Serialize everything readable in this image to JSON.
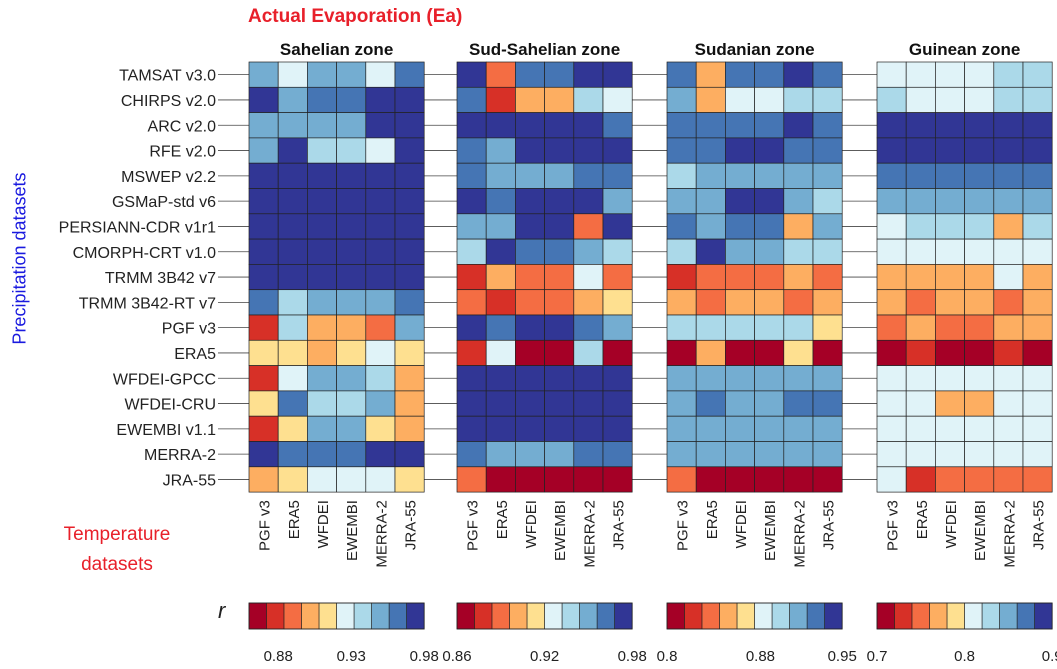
{
  "figure": {
    "title": "Actual Evaporation (Ea)",
    "y_axis_label": "Precipitation datasets",
    "temperature_label_line1": "Temperature",
    "temperature_label_line2": "datasets",
    "colorbar_symbol": "r"
  },
  "chart_data": [
    {
      "type": "heatmap",
      "title": "Sahelian zone",
      "rows": [
        "TAMSAT v3.0",
        "CHIRPS v2.0",
        "ARC v2.0",
        "RFE v2.0",
        "MSWEP v2.2",
        "GSMaP-std v6",
        "PERSIANN-CDR v1r1",
        "CMORPH-CRT v1.0",
        "TRMM 3B42 v7",
        "TRMM 3B42-RT v7",
        "PGF v3",
        "ERA5",
        "WFDEI-GPCC",
        "WFDEI-CRU",
        "EWEMBI v1.1",
        "MERRA-2",
        "JRA-55"
      ],
      "columns": [
        "PGF v3",
        "ERA5",
        "WFDEI",
        "EWEMBI",
        "MERRA-2",
        "JRA-55"
      ],
      "values": [
        [
          0.945,
          0.925,
          0.95,
          0.95,
          0.925,
          0.96
        ],
        [
          0.98,
          0.95,
          0.96,
          0.96,
          0.97,
          0.97
        ],
        [
          0.95,
          0.95,
          0.95,
          0.95,
          0.98,
          0.97
        ],
        [
          0.95,
          0.98,
          0.94,
          0.94,
          0.925,
          0.98
        ],
        [
          0.97,
          0.97,
          0.97,
          0.97,
          0.97,
          0.97
        ],
        [
          0.98,
          0.98,
          0.97,
          0.97,
          0.97,
          0.98
        ],
        [
          0.98,
          0.98,
          0.98,
          0.98,
          0.97,
          0.97
        ],
        [
          0.97,
          0.97,
          0.98,
          0.98,
          0.97,
          0.97
        ],
        [
          0.97,
          0.97,
          0.97,
          0.97,
          0.97,
          0.97
        ],
        [
          0.96,
          0.94,
          0.95,
          0.95,
          0.95,
          0.96
        ],
        [
          0.88,
          0.94,
          0.9,
          0.9,
          0.89,
          0.95
        ],
        [
          0.91,
          0.91,
          0.9,
          0.91,
          0.92,
          0.91
        ],
        [
          0.88,
          0.92,
          0.95,
          0.95,
          0.94,
          0.9
        ],
        [
          0.91,
          0.96,
          0.94,
          0.94,
          0.95,
          0.9
        ],
        [
          0.88,
          0.91,
          0.95,
          0.95,
          0.91,
          0.9
        ],
        [
          0.97,
          0.96,
          0.96,
          0.96,
          0.97,
          0.97
        ],
        [
          0.9,
          0.91,
          0.92,
          0.92,
          0.92,
          0.91
        ]
      ],
      "vmin": 0.86,
      "vmax": 0.98,
      "colorbar_ticks": [
        "0.88",
        "0.93",
        "0.98"
      ],
      "colorbar_tick_values": [
        0.88,
        0.93,
        0.98
      ]
    },
    {
      "type": "heatmap",
      "title": "Sud-Sahelian zone",
      "rows": [
        "TAMSAT v3.0",
        "CHIRPS v2.0",
        "ARC v2.0",
        "RFE v2.0",
        "MSWEP v2.2",
        "GSMaP-std v6",
        "PERSIANN-CDR v1r1",
        "CMORPH-CRT v1.0",
        "TRMM 3B42 v7",
        "TRMM 3B42-RT v7",
        "PGF v3",
        "ERA5",
        "WFDEI-GPCC",
        "WFDEI-CRU",
        "EWEMBI v1.1",
        "MERRA-2",
        "JRA-55"
      ],
      "columns": [
        "PGF v3",
        "ERA5",
        "WFDEI",
        "EWEMBI",
        "MERRA-2",
        "JRA-55"
      ],
      "values": [
        [
          0.97,
          0.89,
          0.96,
          0.96,
          0.97,
          0.97
        ],
        [
          0.96,
          0.88,
          0.9,
          0.9,
          0.94,
          0.92
        ],
        [
          0.97,
          0.97,
          0.97,
          0.97,
          0.97,
          0.96
        ],
        [
          0.96,
          0.95,
          0.98,
          0.98,
          0.97,
          0.97
        ],
        [
          0.96,
          0.95,
          0.95,
          0.95,
          0.96,
          0.96
        ],
        [
          0.97,
          0.96,
          0.98,
          0.98,
          0.97,
          0.95
        ],
        [
          0.95,
          0.95,
          0.97,
          0.97,
          0.89,
          0.97
        ],
        [
          0.94,
          0.97,
          0.96,
          0.96,
          0.95,
          0.94
        ],
        [
          0.88,
          0.9,
          0.89,
          0.89,
          0.93,
          0.89
        ],
        [
          0.89,
          0.88,
          0.89,
          0.89,
          0.9,
          0.91
        ],
        [
          0.97,
          0.96,
          0.97,
          0.97,
          0.96,
          0.95
        ],
        [
          0.88,
          0.92,
          0.86,
          0.86,
          0.94,
          0.87
        ],
        [
          0.98,
          0.97,
          0.97,
          0.97,
          0.98,
          0.98
        ],
        [
          0.97,
          0.97,
          0.98,
          0.98,
          0.97,
          0.98
        ],
        [
          0.98,
          0.97,
          0.97,
          0.97,
          0.98,
          0.98
        ],
        [
          0.96,
          0.95,
          0.95,
          0.95,
          0.96,
          0.96
        ],
        [
          0.89,
          0.86,
          0.86,
          0.86,
          0.86,
          0.86
        ]
      ],
      "vmin": 0.86,
      "vmax": 0.98,
      "colorbar_ticks": [
        "0.86",
        "0.92",
        "0.98"
      ],
      "colorbar_tick_values": [
        0.86,
        0.92,
        0.98
      ]
    },
    {
      "type": "heatmap",
      "title": "Sudanian zone",
      "rows": [
        "TAMSAT v3.0",
        "CHIRPS v2.0",
        "ARC v2.0",
        "RFE v2.0",
        "MSWEP v2.2",
        "GSMaP-std v6",
        "PERSIANN-CDR v1r1",
        "CMORPH-CRT v1.0",
        "TRMM 3B42 v7",
        "TRMM 3B42-RT v7",
        "PGF v3",
        "ERA5",
        "WFDEI-GPCC",
        "WFDEI-CRU",
        "EWEMBI v1.1",
        "MERRA-2",
        "JRA-55"
      ],
      "columns": [
        "PGF v3",
        "ERA5",
        "WFDEI",
        "EWEMBI",
        "MERRA-2",
        "JRA-55"
      ],
      "values": [
        [
          0.93,
          0.86,
          0.93,
          0.93,
          0.94,
          0.93
        ],
        [
          0.91,
          0.86,
          0.88,
          0.88,
          0.9,
          0.89
        ],
        [
          0.93,
          0.93,
          0.93,
          0.93,
          0.95,
          0.92
        ],
        [
          0.93,
          0.92,
          0.95,
          0.95,
          0.93,
          0.93
        ],
        [
          0.9,
          0.91,
          0.91,
          0.91,
          0.91,
          0.91
        ],
        [
          0.91,
          0.91,
          0.95,
          0.95,
          0.91,
          0.89
        ],
        [
          0.92,
          0.91,
          0.92,
          0.92,
          0.86,
          0.91
        ],
        [
          0.89,
          0.94,
          0.91,
          0.91,
          0.9,
          0.9
        ],
        [
          0.82,
          0.84,
          0.84,
          0.84,
          0.86,
          0.84
        ],
        [
          0.85,
          0.84,
          0.85,
          0.85,
          0.84,
          0.86
        ],
        [
          0.89,
          0.89,
          0.89,
          0.89,
          0.9,
          0.87
        ],
        [
          0.8,
          0.86,
          0.8,
          0.8,
          0.87,
          0.8
        ],
        [
          0.91,
          0.91,
          0.91,
          0.91,
          0.91,
          0.91
        ],
        [
          0.91,
          0.92,
          0.91,
          0.91,
          0.92,
          0.92
        ],
        [
          0.91,
          0.91,
          0.91,
          0.91,
          0.91,
          0.91
        ],
        [
          0.91,
          0.91,
          0.91,
          0.91,
          0.91,
          0.91
        ],
        [
          0.84,
          0.8,
          0.8,
          0.8,
          0.8,
          0.8
        ]
      ],
      "vmin": 0.8,
      "vmax": 0.95,
      "colorbar_ticks": [
        "0.8",
        "0.88",
        "0.95"
      ],
      "colorbar_tick_values": [
        0.8,
        0.88,
        0.95
      ]
    },
    {
      "type": "heatmap",
      "title": "Guinean zone",
      "rows": [
        "TAMSAT v3.0",
        "CHIRPS v2.0",
        "ARC v2.0",
        "RFE v2.0",
        "MSWEP v2.2",
        "GSMaP-std v6",
        "PERSIANN-CDR v1r1",
        "CMORPH-CRT v1.0",
        "TRMM 3B42 v7",
        "TRMM 3B42-RT v7",
        "PGF v3",
        "ERA5",
        "WFDEI-GPCC",
        "WFDEI-CRU",
        "EWEMBI v1.1",
        "MERRA-2",
        "JRA-55"
      ],
      "columns": [
        "PGF v3",
        "ERA5",
        "WFDEI",
        "EWEMBI",
        "MERRA-2",
        "JRA-55"
      ],
      "values": [
        [
          0.82,
          0.82,
          0.82,
          0.82,
          0.83,
          0.83
        ],
        [
          0.84,
          0.81,
          0.81,
          0.81,
          0.84,
          0.84
        ],
        [
          0.88,
          0.9,
          0.88,
          0.88,
          0.9,
          0.9
        ],
        [
          0.9,
          0.9,
          0.9,
          0.9,
          0.88,
          0.88
        ],
        [
          0.87,
          0.87,
          0.87,
          0.87,
          0.87,
          0.87
        ],
        [
          0.85,
          0.86,
          0.86,
          0.86,
          0.85,
          0.85
        ],
        [
          0.82,
          0.83,
          0.83,
          0.83,
          0.77,
          0.83
        ],
        [
          0.81,
          0.81,
          0.81,
          0.81,
          0.81,
          0.81
        ],
        [
          0.77,
          0.76,
          0.76,
          0.76,
          0.8,
          0.77
        ],
        [
          0.76,
          0.74,
          0.76,
          0.76,
          0.75,
          0.76
        ],
        [
          0.75,
          0.77,
          0.75,
          0.75,
          0.76,
          0.77
        ],
        [
          0.7,
          0.73,
          0.7,
          0.7,
          0.73,
          0.7
        ],
        [
          0.81,
          0.81,
          0.82,
          0.82,
          0.82,
          0.82
        ],
        [
          0.81,
          0.81,
          0.76,
          0.76,
          0.82,
          0.82
        ],
        [
          0.81,
          0.81,
          0.82,
          0.82,
          0.82,
          0.82
        ],
        [
          0.82,
          0.82,
          0.82,
          0.82,
          0.82,
          0.82
        ],
        [
          0.81,
          0.73,
          0.74,
          0.74,
          0.74,
          0.74
        ]
      ],
      "vmin": 0.7,
      "vmax": 0.9,
      "colorbar_ticks": [
        "0.7",
        "0.8",
        "0.9"
      ],
      "colorbar_tick_values": [
        0.7,
        0.8,
        0.9
      ]
    }
  ],
  "colormap": [
    "#a50026",
    "#d73027",
    "#f46d43",
    "#fdae61",
    "#fee090",
    "#e0f3f8",
    "#abd9e9",
    "#74add1",
    "#4575b4",
    "#313695"
  ],
  "colors": {
    "title": "#e8202a",
    "y_axis_label": "#1a1adf",
    "cell_border": "#222222"
  }
}
